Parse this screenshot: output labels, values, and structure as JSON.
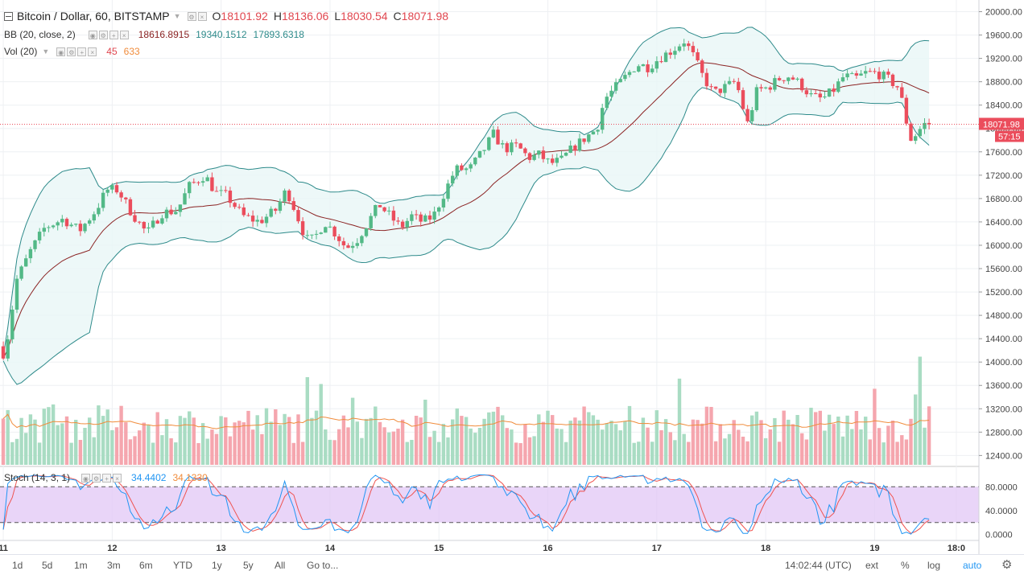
{
  "symbol": {
    "name": "Bitcoin / Dollar, 60, BITSTAMP",
    "o_label": "O",
    "open": "18101.92",
    "h_label": "H",
    "high": "18136.06",
    "l_label": "L",
    "low": "18030.54",
    "c_label": "C",
    "close": "18071.98"
  },
  "bb_legend": {
    "name": "BB (20, close, 2)",
    "basis": "18616.8915",
    "upper": "19340.1512",
    "lower": "17893.6318"
  },
  "vol_legend": {
    "name": "Vol (20)",
    "value": "45",
    "ma": "633"
  },
  "stoch_legend": {
    "name": "Stoch (14, 3, 1)",
    "k": "34.4402",
    "d": "34.1330"
  },
  "price_tag": "18071.98",
  "countdown_tag": "57:15",
  "colors": {
    "up": "#53b987",
    "down": "#eb4d5c",
    "vol_up": "#a9dcc3",
    "vol_down": "#f5a6ae",
    "bb_line": "#2d8a8a",
    "bb_fill": "#e8f6f6",
    "basis": "#8b2323",
    "vol_ma": "#f08c3c",
    "stoch_k": "#2196f3",
    "stoch_d": "#ef5350",
    "stoch_band": "#e1c7f5"
  },
  "bottombar": {
    "ranges": [
      "1d",
      "5d",
      "1m",
      "3m",
      "6m",
      "YTD",
      "1y",
      "5y",
      "All"
    ],
    "goto": "Go to...",
    "time": "14:02:44 (UTC)",
    "options": [
      "ext",
      "%",
      "log",
      "auto"
    ]
  },
  "chart_data": {
    "type": "candlestick",
    "interval": "60",
    "y_ticks": [
      20000,
      19600,
      19200,
      18800,
      18400,
      18000,
      17600,
      17200,
      16800,
      16400,
      16000,
      15600,
      15200,
      14800,
      14400,
      14000,
      13600,
      13200,
      12800,
      12400
    ],
    "y_tick_labels": [
      "20000.00",
      "19600.00",
      "19200.00",
      "18800.00",
      "18400.00",
      "18000.00",
      "17600.00",
      "17200.00",
      "16800.00",
      "16400.00",
      "16000.00",
      "15600.00",
      "15200.00",
      "14800.00",
      "14400.00",
      "14000.00",
      "13600.00",
      "13200.00",
      "12800.00",
      "12400.00"
    ],
    "ylim": [
      12240,
      20200
    ],
    "x_ticks": [
      {
        "label": "11",
        "day": 11
      },
      {
        "label": "12",
        "day": 12
      },
      {
        "label": "13",
        "day": 13
      },
      {
        "label": "14",
        "day": 14
      },
      {
        "label": "15",
        "day": 15
      },
      {
        "label": "16",
        "day": 16
      },
      {
        "label": "17",
        "day": 17
      },
      {
        "label": "18",
        "day": 18
      },
      {
        "label": "19",
        "day": 19
      },
      {
        "label": "18:0",
        "day": 19.75
      }
    ],
    "x_range": [
      10.97,
      19.95
    ],
    "price_anchors": [
      [
        11.0,
        14150
      ],
      [
        11.05,
        14500
      ],
      [
        11.12,
        15400
      ],
      [
        11.25,
        15900
      ],
      [
        11.38,
        16300
      ],
      [
        11.55,
        16450
      ],
      [
        11.7,
        16250
      ],
      [
        11.85,
        16600
      ],
      [
        11.95,
        16950
      ],
      [
        12.05,
        16950
      ],
      [
        12.18,
        16550
      ],
      [
        12.32,
        16200
      ],
      [
        12.45,
        16550
      ],
      [
        12.6,
        16600
      ],
      [
        12.7,
        17000
      ],
      [
        12.85,
        17200
      ],
      [
        12.95,
        16900
      ],
      [
        13.05,
        16850
      ],
      [
        13.2,
        16500
      ],
      [
        13.35,
        16400
      ],
      [
        13.5,
        16600
      ],
      [
        13.6,
        16950
      ],
      [
        13.68,
        16600
      ],
      [
        13.78,
        16100
      ],
      [
        13.85,
        16100
      ],
      [
        13.95,
        16400
      ],
      [
        14.05,
        16200
      ],
      [
        14.15,
        15950
      ],
      [
        14.25,
        16100
      ],
      [
        14.35,
        16400
      ],
      [
        14.45,
        16700
      ],
      [
        14.55,
        16500
      ],
      [
        14.65,
        16300
      ],
      [
        14.75,
        16500
      ],
      [
        14.85,
        16400
      ],
      [
        14.95,
        16500
      ],
      [
        15.05,
        16900
      ],
      [
        15.15,
        17300
      ],
      [
        15.28,
        17300
      ],
      [
        15.4,
        17600
      ],
      [
        15.5,
        17900
      ],
      [
        15.6,
        17650
      ],
      [
        15.72,
        17700
      ],
      [
        15.82,
        17500
      ],
      [
        15.92,
        17550
      ],
      [
        16.02,
        17400
      ],
      [
        16.12,
        17450
      ],
      [
        16.22,
        17650
      ],
      [
        16.35,
        17850
      ],
      [
        16.45,
        18000
      ],
      [
        16.52,
        18500
      ],
      [
        16.62,
        18700
      ],
      [
        16.72,
        18900
      ],
      [
        16.82,
        19100
      ],
      [
        16.92,
        19050
      ],
      [
        17.02,
        19200
      ],
      [
        17.15,
        19350
      ],
      [
        17.25,
        19500
      ],
      [
        17.32,
        19300
      ],
      [
        17.42,
        18900
      ],
      [
        17.52,
        18600
      ],
      [
        17.62,
        18700
      ],
      [
        17.72,
        18800
      ],
      [
        17.78,
        18500
      ],
      [
        17.82,
        18000
      ],
      [
        17.92,
        18650
      ],
      [
        18.02,
        18700
      ],
      [
        18.12,
        18850
      ],
      [
        18.22,
        18900
      ],
      [
        18.32,
        18750
      ],
      [
        18.42,
        18550
      ],
      [
        18.52,
        18500
      ],
      [
        18.62,
        18650
      ],
      [
        18.72,
        18900
      ],
      [
        18.82,
        18850
      ],
      [
        18.92,
        18950
      ],
      [
        19.02,
        18950
      ],
      [
        19.12,
        18850
      ],
      [
        19.22,
        18700
      ],
      [
        19.28,
        18250
      ],
      [
        19.32,
        17800
      ],
      [
        19.38,
        17900
      ],
      [
        19.45,
        18071.98
      ],
      [
        19.5,
        18071.98
      ]
    ],
    "volume_ylim": [
      0,
      11000
    ],
    "stoch_ylim": [
      -10,
      110
    ],
    "stoch_levels": [
      80,
      20
    ],
    "stoch_ticks": [
      {
        "v": 80,
        "label": "80.0000"
      },
      {
        "v": 40,
        "label": "40.0000"
      },
      {
        "v": 0,
        "label": "0.0000"
      }
    ],
    "last_price": 18071.98
  }
}
